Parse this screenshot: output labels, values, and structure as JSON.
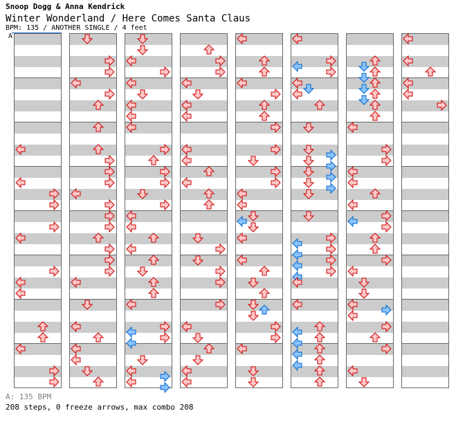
{
  "header": {
    "artist": "Snoop Dogg & Anna Kendrick",
    "song": "Winter Wonderland / Here Comes Santa Claus",
    "meta": "BPM: 135 / ANOTHER SINGLE / 4 feet",
    "section_marker": "A"
  },
  "footer": {
    "bpm_line": "A: 135 BPM",
    "stats": "208 steps, 0 freeze arrows, max combo 208"
  },
  "colors": {
    "note_outline": "#cc0000",
    "note_fill": "#ffc8c8",
    "offbeat_outline": "#0066cc",
    "offbeat_fill": "#8cc4ff",
    "row_gray": "#cccccc",
    "border": "#666666",
    "section_bar": "#1a66cc"
  },
  "chart": {
    "columns": 8,
    "measures_per_column": 8,
    "subdivisions_per_measure": 8,
    "lanes": [
      "left",
      "down",
      "up",
      "right"
    ],
    "notes_legend": "each note: [column, measure, eighth-position, lane]",
    "notes": [
      [
        0,
        2,
        4,
        "left"
      ],
      [
        0,
        3,
        2,
        "left"
      ],
      [
        0,
        3,
        4,
        "right"
      ],
      [
        0,
        3,
        6,
        "right"
      ],
      [
        0,
        4,
        2,
        "right"
      ],
      [
        0,
        4,
        4,
        "left"
      ],
      [
        0,
        5,
        2,
        "right"
      ],
      [
        0,
        5,
        4,
        "left"
      ],
      [
        0,
        5,
        6,
        "left"
      ],
      [
        0,
        6,
        4,
        "up"
      ],
      [
        0,
        6,
        6,
        "up"
      ],
      [
        0,
        7,
        0,
        "left"
      ],
      [
        0,
        7,
        4,
        "right"
      ],
      [
        0,
        7,
        6,
        "right"
      ],
      [
        1,
        0,
        0,
        "down"
      ],
      [
        1,
        0,
        4,
        "right"
      ],
      [
        1,
        0,
        6,
        "right"
      ],
      [
        1,
        1,
        0,
        "left"
      ],
      [
        1,
        1,
        2,
        "right"
      ],
      [
        1,
        1,
        4,
        "up"
      ],
      [
        1,
        2,
        0,
        "up"
      ],
      [
        1,
        2,
        4,
        "up"
      ],
      [
        1,
        2,
        6,
        "right"
      ],
      [
        1,
        3,
        0,
        "right"
      ],
      [
        1,
        3,
        2,
        "right"
      ],
      [
        1,
        3,
        4,
        "left"
      ],
      [
        1,
        3,
        6,
        "right"
      ],
      [
        1,
        4,
        0,
        "right"
      ],
      [
        1,
        4,
        2,
        "right"
      ],
      [
        1,
        4,
        4,
        "up"
      ],
      [
        1,
        4,
        6,
        "right"
      ],
      [
        1,
        5,
        0,
        "right"
      ],
      [
        1,
        5,
        2,
        "right"
      ],
      [
        1,
        5,
        4,
        "left"
      ],
      [
        1,
        6,
        0,
        "down"
      ],
      [
        1,
        6,
        4,
        "left"
      ],
      [
        1,
        6,
        6,
        "up"
      ],
      [
        1,
        7,
        0,
        "left"
      ],
      [
        1,
        7,
        2,
        "left"
      ],
      [
        1,
        7,
        4,
        "down"
      ],
      [
        1,
        7,
        6,
        "up"
      ],
      [
        2,
        0,
        0,
        "down"
      ],
      [
        2,
        0,
        2,
        "down"
      ],
      [
        2,
        0,
        4,
        "left"
      ],
      [
        2,
        0,
        6,
        "right"
      ],
      [
        2,
        1,
        0,
        "left"
      ],
      [
        2,
        1,
        2,
        "down"
      ],
      [
        2,
        1,
        4,
        "left"
      ],
      [
        2,
        1,
        6,
        "left"
      ],
      [
        2,
        2,
        0,
        "left"
      ],
      [
        2,
        2,
        4,
        "right"
      ],
      [
        2,
        2,
        6,
        "up"
      ],
      [
        2,
        3,
        0,
        "right"
      ],
      [
        2,
        3,
        2,
        "right"
      ],
      [
        2,
        3,
        4,
        "down"
      ],
      [
        2,
        3,
        6,
        "right"
      ],
      [
        2,
        4,
        0,
        "left"
      ],
      [
        2,
        4,
        2,
        "left"
      ],
      [
        2,
        4,
        4,
        "up"
      ],
      [
        2,
        4,
        6,
        "left"
      ],
      [
        2,
        5,
        0,
        "up"
      ],
      [
        2,
        5,
        2,
        "down"
      ],
      [
        2,
        5,
        4,
        "up"
      ],
      [
        2,
        5,
        6,
        "up"
      ],
      [
        2,
        6,
        0,
        "left"
      ],
      [
        2,
        6,
        4,
        "right"
      ],
      [
        2,
        6,
        5,
        "left"
      ],
      [
        2,
        6,
        6,
        "right"
      ],
      [
        2,
        6,
        7,
        "left"
      ],
      [
        2,
        7,
        2,
        "down"
      ],
      [
        2,
        7,
        4,
        "left"
      ],
      [
        2,
        7,
        5,
        "right"
      ],
      [
        2,
        7,
        6,
        "left"
      ],
      [
        2,
        7,
        7,
        "right"
      ],
      [
        3,
        0,
        2,
        "up"
      ],
      [
        3,
        0,
        4,
        "right"
      ],
      [
        3,
        0,
        6,
        "right"
      ],
      [
        3,
        1,
        0,
        "left"
      ],
      [
        3,
        1,
        2,
        "down"
      ],
      [
        3,
        1,
        4,
        "left"
      ],
      [
        3,
        1,
        6,
        "left"
      ],
      [
        3,
        2,
        4,
        "left"
      ],
      [
        3,
        2,
        6,
        "left"
      ],
      [
        3,
        3,
        0,
        "up"
      ],
      [
        3,
        3,
        2,
        "left"
      ],
      [
        3,
        3,
        4,
        "up"
      ],
      [
        3,
        3,
        6,
        "up"
      ],
      [
        3,
        4,
        4,
        "down"
      ],
      [
        3,
        4,
        6,
        "right"
      ],
      [
        3,
        5,
        0,
        "down"
      ],
      [
        3,
        5,
        2,
        "right"
      ],
      [
        3,
        5,
        4,
        "right"
      ],
      [
        3,
        6,
        0,
        "right"
      ],
      [
        3,
        6,
        4,
        "left"
      ],
      [
        3,
        6,
        6,
        "down"
      ],
      [
        3,
        7,
        0,
        "up"
      ],
      [
        3,
        7,
        2,
        "down"
      ],
      [
        3,
        7,
        4,
        "left"
      ],
      [
        3,
        7,
        6,
        "left"
      ],
      [
        4,
        0,
        0,
        "left"
      ],
      [
        4,
        0,
        4,
        "up"
      ],
      [
        4,
        0,
        6,
        "up"
      ],
      [
        4,
        1,
        0,
        "left"
      ],
      [
        4,
        1,
        2,
        "right"
      ],
      [
        4,
        1,
        4,
        "up"
      ],
      [
        4,
        1,
        6,
        "up"
      ],
      [
        4,
        2,
        0,
        "right"
      ],
      [
        4,
        2,
        4,
        "right"
      ],
      [
        4,
        2,
        6,
        "down"
      ],
      [
        4,
        3,
        0,
        "right"
      ],
      [
        4,
        3,
        2,
        "right"
      ],
      [
        4,
        3,
        4,
        "left"
      ],
      [
        4,
        3,
        6,
        "left"
      ],
      [
        4,
        4,
        0,
        "down"
      ],
      [
        4,
        4,
        1,
        "left"
      ],
      [
        4,
        4,
        2,
        "down"
      ],
      [
        4,
        4,
        4,
        "left"
      ],
      [
        4,
        5,
        0,
        "left"
      ],
      [
        4,
        5,
        2,
        "up"
      ],
      [
        4,
        5,
        4,
        "down"
      ],
      [
        4,
        5,
        6,
        "up"
      ],
      [
        4,
        6,
        0,
        "down"
      ],
      [
        4,
        6,
        1,
        "up"
      ],
      [
        4,
        6,
        2,
        "down"
      ],
      [
        4,
        6,
        4,
        "right"
      ],
      [
        4,
        6,
        6,
        "right"
      ],
      [
        4,
        7,
        0,
        "left"
      ],
      [
        4,
        7,
        4,
        "down"
      ],
      [
        4,
        7,
        6,
        "down"
      ],
      [
        5,
        0,
        0,
        "left"
      ],
      [
        5,
        0,
        4,
        "right"
      ],
      [
        5,
        0,
        5,
        "left"
      ],
      [
        5,
        0,
        6,
        "right"
      ],
      [
        5,
        1,
        0,
        "left"
      ],
      [
        5,
        1,
        1,
        "down"
      ],
      [
        5,
        1,
        2,
        "left"
      ],
      [
        5,
        1,
        4,
        "up"
      ],
      [
        5,
        2,
        0,
        "down"
      ],
      [
        5,
        2,
        4,
        "down"
      ],
      [
        5,
        2,
        5,
        "right"
      ],
      [
        5,
        2,
        6,
        "down"
      ],
      [
        5,
        2,
        7,
        "right"
      ],
      [
        5,
        3,
        0,
        "down"
      ],
      [
        5,
        3,
        1,
        "right"
      ],
      [
        5,
        3,
        2,
        "down"
      ],
      [
        5,
        3,
        3,
        "right"
      ],
      [
        5,
        3,
        4,
        "down"
      ],
      [
        5,
        4,
        0,
        "down"
      ],
      [
        5,
        4,
        4,
        "right"
      ],
      [
        5,
        4,
        5,
        "left"
      ],
      [
        5,
        4,
        6,
        "right"
      ],
      [
        5,
        4,
        7,
        "left"
      ],
      [
        5,
        5,
        0,
        "right"
      ],
      [
        5,
        5,
        1,
        "left"
      ],
      [
        5,
        5,
        2,
        "right"
      ],
      [
        5,
        5,
        3,
        "left"
      ],
      [
        5,
        5,
        4,
        "left"
      ],
      [
        5,
        6,
        0,
        "left"
      ],
      [
        5,
        6,
        4,
        "up"
      ],
      [
        5,
        6,
        5,
        "left"
      ],
      [
        5,
        6,
        6,
        "up"
      ],
      [
        5,
        6,
        7,
        "left"
      ],
      [
        5,
        7,
        0,
        "up"
      ],
      [
        5,
        7,
        1,
        "left"
      ],
      [
        5,
        7,
        2,
        "up"
      ],
      [
        5,
        7,
        3,
        "left"
      ],
      [
        5,
        7,
        4,
        "up"
      ],
      [
        5,
        7,
        6,
        "up"
      ],
      [
        6,
        0,
        4,
        "up"
      ],
      [
        6,
        0,
        5,
        "down"
      ],
      [
        6,
        0,
        6,
        "up"
      ],
      [
        6,
        0,
        7,
        "down"
      ],
      [
        6,
        1,
        0,
        "up"
      ],
      [
        6,
        1,
        1,
        "down"
      ],
      [
        6,
        1,
        2,
        "up"
      ],
      [
        6,
        1,
        3,
        "down"
      ],
      [
        6,
        1,
        4,
        "up"
      ],
      [
        6,
        1,
        6,
        "up"
      ],
      [
        6,
        2,
        0,
        "left"
      ],
      [
        6,
        2,
        4,
        "right"
      ],
      [
        6,
        2,
        6,
        "right"
      ],
      [
        6,
        3,
        0,
        "left"
      ],
      [
        6,
        3,
        2,
        "left"
      ],
      [
        6,
        3,
        4,
        "up"
      ],
      [
        6,
        3,
        6,
        "left"
      ],
      [
        6,
        4,
        0,
        "right"
      ],
      [
        6,
        4,
        1,
        "left"
      ],
      [
        6,
        4,
        2,
        "right"
      ],
      [
        6,
        4,
        4,
        "up"
      ],
      [
        6,
        4,
        6,
        "up"
      ],
      [
        6,
        5,
        0,
        "right"
      ],
      [
        6,
        5,
        2,
        "left"
      ],
      [
        6,
        5,
        4,
        "down"
      ],
      [
        6,
        5,
        6,
        "down"
      ],
      [
        6,
        6,
        0,
        "left"
      ],
      [
        6,
        6,
        1,
        "right"
      ],
      [
        6,
        6,
        2,
        "left"
      ],
      [
        6,
        6,
        4,
        "right"
      ],
      [
        6,
        6,
        6,
        "up"
      ],
      [
        6,
        7,
        0,
        "right"
      ],
      [
        6,
        7,
        4,
        "left"
      ],
      [
        6,
        7,
        6,
        "down"
      ],
      [
        7,
        0,
        0,
        "left"
      ],
      [
        7,
        0,
        4,
        "left"
      ],
      [
        7,
        0,
        6,
        "up"
      ],
      [
        7,
        1,
        0,
        "left"
      ],
      [
        7,
        1,
        2,
        "left"
      ],
      [
        7,
        1,
        4,
        "right"
      ]
    ]
  }
}
